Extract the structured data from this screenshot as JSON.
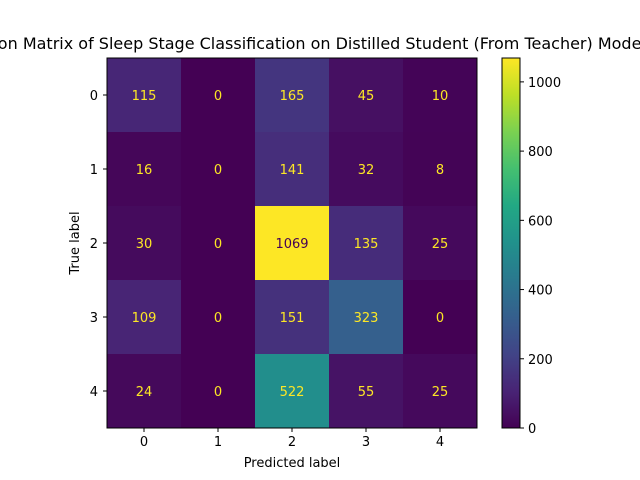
{
  "chart_data": {
    "type": "heatmap",
    "title": "Confusion Matrix of Sleep Stage Classification on Distilled Student (From Teacher) Model",
    "xlabel": "Predicted label",
    "ylabel": "True label",
    "x_categories": [
      "0",
      "1",
      "2",
      "3",
      "4"
    ],
    "y_categories": [
      "0",
      "1",
      "2",
      "3",
      "4"
    ],
    "matrix": [
      [
        115,
        0,
        165,
        45,
        10
      ],
      [
        16,
        0,
        141,
        32,
        8
      ],
      [
        30,
        0,
        1069,
        135,
        25
      ],
      [
        109,
        0,
        151,
        323,
        0
      ],
      [
        24,
        0,
        522,
        55,
        25
      ]
    ],
    "colormap": "viridis",
    "colorbar": {
      "min": 0,
      "max": 1069,
      "ticks": [
        "0",
        "200",
        "400",
        "600",
        "800",
        "1000"
      ]
    },
    "annotation_colors": {
      "on_dark": "#fde725",
      "on_light": "#440154"
    }
  }
}
